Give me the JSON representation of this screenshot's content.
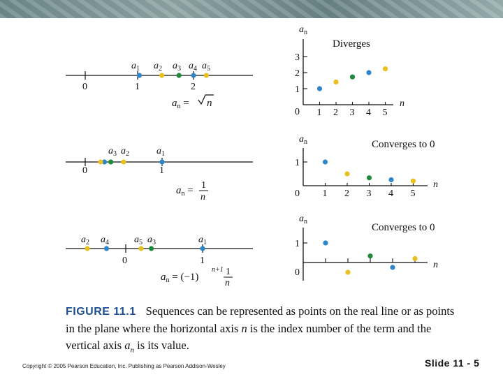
{
  "colors": {
    "blue": "#2e86c8",
    "yellow": "#e8c020",
    "green": "#1f8a3c",
    "figure_label": "#1d4f91",
    "ink": "#111111"
  },
  "lines": {
    "top": {
      "tick_labels": [
        "0",
        "1",
        "2"
      ],
      "point_labels": [
        "a1",
        "a2",
        "a3",
        "a4",
        "a5"
      ],
      "formula": "a_n = √n",
      "points": [
        {
          "n": 1,
          "value": 1.0,
          "color": "blue"
        },
        {
          "n": 2,
          "value": 1.414,
          "color": "yellow"
        },
        {
          "n": 3,
          "value": 1.732,
          "color": "green"
        },
        {
          "n": 4,
          "value": 2.0,
          "color": "blue"
        },
        {
          "n": 5,
          "value": 2.236,
          "color": "yellow"
        }
      ]
    },
    "middle": {
      "tick_labels": [
        "0",
        "1"
      ],
      "point_labels": [
        "a3",
        "a2",
        "a1"
      ],
      "formula_lhs": "a_n =",
      "formula_num": "1",
      "formula_den": "n",
      "points": [
        {
          "n": 1,
          "value": 1.0,
          "color": "blue"
        },
        {
          "n": 2,
          "value": 0.5,
          "color": "yellow"
        },
        {
          "n": 3,
          "value": 0.333,
          "color": "green"
        },
        {
          "n": 4,
          "value": 0.25,
          "color": "blue"
        },
        {
          "n": 5,
          "value": 0.2,
          "color": "yellow"
        }
      ]
    },
    "bottom": {
      "tick_labels": [
        "0",
        "1"
      ],
      "point_labels": [
        "a2",
        "a4",
        "a5",
        "a3",
        "a1"
      ],
      "formula_lhs": "a_n = (−1)",
      "formula_exp": "n+1",
      "formula_num": "1",
      "formula_den": "n",
      "points": [
        {
          "n": 1,
          "value": 1.0,
          "color": "blue"
        },
        {
          "n": 2,
          "value": -0.5,
          "color": "yellow"
        },
        {
          "n": 3,
          "value": 0.333,
          "color": "green"
        },
        {
          "n": 4,
          "value": -0.25,
          "color": "blue"
        },
        {
          "n": 5,
          "value": 0.2,
          "color": "yellow"
        }
      ]
    }
  },
  "plots": {
    "diverges": {
      "title": "Diverges",
      "y_label": "a_n",
      "x_label": "n",
      "x_ticks": [
        "1",
        "2",
        "3",
        "4",
        "5"
      ],
      "y_ticks": [
        "1",
        "2",
        "3"
      ],
      "origin_label": "0",
      "points": [
        {
          "n": 1,
          "value": 1.0,
          "color": "blue"
        },
        {
          "n": 2,
          "value": 1.414,
          "color": "yellow"
        },
        {
          "n": 3,
          "value": 1.732,
          "color": "green"
        },
        {
          "n": 4,
          "value": 2.0,
          "color": "blue"
        },
        {
          "n": 5,
          "value": 2.236,
          "color": "yellow"
        }
      ]
    },
    "converges1": {
      "title": "Converges to 0",
      "y_label": "a_n",
      "x_label": "n",
      "x_ticks": [
        "1",
        "2",
        "3",
        "4",
        "5"
      ],
      "y_ticks": [
        "1"
      ],
      "origin_label": "0",
      "points": [
        {
          "n": 1,
          "value": 1.0,
          "color": "blue"
        },
        {
          "n": 2,
          "value": 0.5,
          "color": "yellow"
        },
        {
          "n": 3,
          "value": 0.333,
          "color": "green"
        },
        {
          "n": 4,
          "value": 0.25,
          "color": "blue"
        },
        {
          "n": 5,
          "value": 0.2,
          "color": "yellow"
        }
      ]
    },
    "converges2": {
      "title": "Converges to 0",
      "y_label": "a_n",
      "x_label": "n",
      "x_ticks": [],
      "y_ticks": [
        "1"
      ],
      "origin_label": "0",
      "points": [
        {
          "n": 1,
          "value": 1.0,
          "color": "blue"
        },
        {
          "n": 2,
          "value": -0.5,
          "color": "yellow"
        },
        {
          "n": 3,
          "value": 0.333,
          "color": "green"
        },
        {
          "n": 4,
          "value": -0.25,
          "color": "blue"
        },
        {
          "n": 5,
          "value": 0.2,
          "color": "yellow"
        }
      ]
    }
  },
  "caption": {
    "figure_label": "FIGURE 11.1",
    "part1": "Sequences can be represented as points on the real line or as points in the plane where the horizontal axis ",
    "n_var": "n",
    "part2": " is the index number of the term and the vertical axis ",
    "an_var": "a",
    "an_sub": "n",
    "part3": " is its value."
  },
  "footer": {
    "copyright": "Copyright © 2005 Pearson Education, Inc. Publishing as Pearson Addison-Wesley",
    "slide_number": "Slide 11 - 5"
  }
}
